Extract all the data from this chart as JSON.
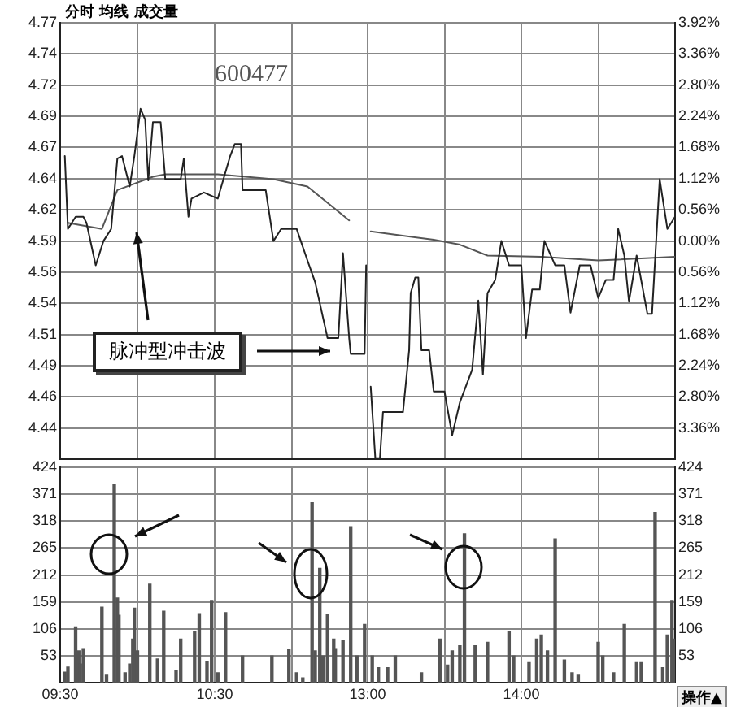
{
  "chart_data": [
    {
      "type": "line",
      "title": "600477",
      "annotations": [
        "分时 均线 成交量",
        "脉冲型冲击波"
      ],
      "xlim": [
        9.5,
        11.5
      ],
      "xticks": [
        9.5,
        10,
        10.5,
        11
      ],
      "ylim": [
        4.4101,
        4.7699
      ],
      "yticks": [
        {
          "value": 4.7699,
          "label": "4.77"
        },
        {
          "value": 4.7442,
          "label": "4.74"
        },
        {
          "value": 4.7185,
          "label": "4.72"
        },
        {
          "value": 4.6928,
          "label": "4.69"
        },
        {
          "value": 4.6671,
          "label": "4.67"
        },
        {
          "value": 4.6414,
          "label": "4.64"
        },
        {
          "value": 4.6157,
          "label": "4.62"
        },
        {
          "value": 4.59,
          "label": "4.59"
        },
        {
          "value": 4.5643,
          "label": "4.56"
        },
        {
          "value": 4.5386,
          "label": "4.54"
        },
        {
          "value": 4.5129,
          "label": "4.51"
        },
        {
          "value": 4.4872,
          "label": "4.49"
        },
        {
          "value": 4.4615,
          "label": "4.46"
        },
        {
          "value": 4.4358,
          "label": "4.44"
        }
      ],
      "grid": true,
      "tick_labels": "y",
      "series": [
        {
          "color": "#222222",
          "x": [
            9.53,
            9.55,
            9.6,
            9.65,
            9.67,
            9.73,
            9.78,
            9.83,
            9.87,
            9.9,
            9.95,
            9.98,
            10.02,
            10.05,
            10.07,
            10.1,
            10.15,
            10.18,
            10.28,
            10.3,
            10.33,
            10.35,
            10.43,
            10.52,
            10.6,
            10.63,
            10.67,
            10.68,
            10.83,
            10.88,
            10.93,
            11.03,
            11.1,
            11.15,
            11.23,
            11.3,
            11.33,
            11.37,
            11.38,
            11.47,
            11.48
          ],
          "values": [
            4.66,
            4.6,
            4.61,
            4.61,
            4.605,
            4.57,
            4.59,
            4.6,
            4.658,
            4.66,
            4.635,
            4.66,
            4.699,
            4.69,
            4.64,
            4.688,
            4.688,
            4.641,
            4.641,
            4.658,
            4.61,
            4.625,
            4.63,
            4.625,
            4.66,
            4.67,
            4.67,
            4.632,
            4.632,
            4.59,
            4.6,
            4.6,
            4.574,
            4.556,
            4.51,
            4.51,
            4.58,
            4.51,
            4.497,
            4.497,
            4.57
          ]
        },
        {
          "color": "#555555",
          "x": [
            9.55,
            9.77,
            9.87,
            10.1,
            10.18,
            10.52,
            10.88,
            11.1,
            11.37
          ],
          "values": [
            4.605,
            4.6,
            4.632,
            4.643,
            4.645,
            4.645,
            4.641,
            4.635,
            4.607
          ]
        }
      ]
    },
    {
      "type": "line",
      "xlim": [
        13,
        15
      ],
      "xticks": [
        13,
        13.5,
        14,
        14.5,
        15
      ],
      "ylim": [
        4.4101,
        4.7699
      ],
      "y2lim": [
        -3.92,
        3.92
      ],
      "y2ticks": [
        {
          "value": 3.92,
          "label": "3.92%"
        },
        {
          "value": 3.36,
          "label": "3.36%"
        },
        {
          "value": 2.8,
          "label": "2.80%"
        },
        {
          "value": 2.24,
          "label": "2.24%"
        },
        {
          "value": 1.68,
          "label": "1.68%"
        },
        {
          "value": 1.12,
          "label": "1.12%"
        },
        {
          "value": 0.56,
          "label": "0.56%"
        },
        {
          "value": 0,
          "label": "0.00%"
        },
        {
          "value": -0.56,
          "label": "0.56%"
        },
        {
          "value": -1.12,
          "label": "1.12%"
        },
        {
          "value": -1.68,
          "label": "1.68%"
        },
        {
          "value": -2.24,
          "label": "2.24%"
        },
        {
          "value": -2.8,
          "label": "2.80%"
        },
        {
          "value": -3.36,
          "label": "3.36%"
        }
      ],
      "grid": true,
      "tick_labels": "y",
      "series": [
        {
          "color": "#222222",
          "x": [
            13.02,
            13.05,
            13.08,
            13.1,
            13.23,
            13.27,
            13.28,
            13.31,
            13.33,
            13.35,
            13.4,
            13.43,
            13.5,
            13.55,
            13.6,
            13.68,
            13.72,
            13.75,
            13.78,
            13.83,
            13.87,
            13.92,
            14,
            14.03,
            14.07,
            14.12,
            14.15,
            14.22,
            14.28,
            14.32,
            14.38,
            14.45,
            14.5,
            14.55,
            14.6,
            14.63,
            14.67,
            14.7,
            14.75,
            14.82,
            14.85,
            14.9,
            14.95,
            15
          ],
          "values": [
            4.47,
            4.411,
            4.411,
            4.449,
            4.449,
            4.5,
            4.547,
            4.56,
            4.56,
            4.5,
            4.5,
            4.466,
            4.466,
            4.43,
            4.457,
            4.484,
            4.541,
            4.48,
            4.547,
            4.558,
            4.59,
            4.57,
            4.57,
            4.51,
            4.55,
            4.55,
            4.59,
            4.57,
            4.57,
            4.531,
            4.57,
            4.57,
            4.543,
            4.558,
            4.558,
            4.6,
            4.578,
            4.54,
            4.578,
            4.53,
            4.53,
            4.641,
            4.6,
            4.61
          ]
        },
        {
          "color": "#555555",
          "x": [
            13.02,
            13.43,
            13.6,
            13.78,
            14.13,
            14.5,
            15
          ],
          "values": [
            4.598,
            4.591,
            4.587,
            4.578,
            4.577,
            4.574,
            4.577
          ]
        }
      ]
    },
    {
      "type": "bar",
      "xlim": [
        9.5,
        11.5
      ],
      "xticks": [
        {
          "value": 9.5,
          "label": "09:30"
        },
        {
          "value": 10,
          "label": null
        },
        {
          "value": 10.5,
          "label": "10:30"
        },
        {
          "value": 11,
          "label": null
        }
      ],
      "ylim": [
        0,
        424
      ],
      "yticks": [
        53,
        106,
        159,
        212,
        265,
        318,
        371,
        424
      ],
      "grid": true,
      "series": [
        {
          "color": "#555555",
          "x": [
            9.53,
            9.55,
            9.6,
            9.62,
            9.63,
            9.65,
            9.77,
            9.8,
            9.85,
            9.87,
            9.88,
            9.92,
            9.95,
            9.97,
            9.98,
            10,
            10.08,
            10.13,
            10.17,
            10.25,
            10.28,
            10.37,
            10.4,
            10.45,
            10.48,
            10.52,
            10.57,
            10.68,
            10.87,
            10.98,
            11.03,
            11.07,
            11.13,
            11.15,
            11.18,
            11.2,
            11.23,
            11.27,
            11.28,
            11.33,
            11.38,
            11.42,
            11.47
          ],
          "values": [
            21,
            31,
            110,
            63,
            37,
            66,
            149,
            15,
            390,
            167,
            133,
            20,
            37,
            86,
            147,
            63,
            194,
            47,
            141,
            25,
            86,
            100,
            136,
            41,
            162,
            20,
            138,
            53,
            53,
            65,
            20,
            10,
            354,
            63,
            225,
            53,
            134,
            86,
            66,
            84,
            307,
            53,
            115
          ]
        }
      ]
    },
    {
      "type": "bar",
      "annotations": [
        "操作▲"
      ],
      "xlim": [
        13,
        15
      ],
      "xticks": [
        {
          "value": 13,
          "label": "13:00"
        },
        {
          "value": 13.5,
          "label": null
        },
        {
          "value": 14,
          "label": "14:00"
        },
        {
          "value": 14.5,
          "label": null
        },
        {
          "value": 15,
          "label": null
        }
      ],
      "y2lim": [
        0,
        424
      ],
      "y2ticks": [
        53,
        106,
        159,
        212,
        265,
        318,
        371,
        424
      ],
      "grid": true,
      "series": [
        {
          "axis": "y2",
          "color": "#555555",
          "x": [
            13.03,
            13.07,
            13.13,
            13.18,
            13.35,
            13.47,
            13.52,
            13.55,
            13.6,
            13.63,
            13.7,
            13.78,
            13.92,
            13.95,
            14.05,
            14.1,
            14.13,
            14.17,
            14.22,
            14.28,
            14.33,
            14.37,
            14.5,
            14.53,
            14.6,
            14.67,
            14.75,
            14.78,
            14.87,
            14.92,
            14.95,
            14.98,
            15
          ],
          "values": [
            53,
            30,
            30,
            53,
            20,
            86,
            35,
            63,
            73,
            293,
            73,
            80,
            100,
            53,
            40,
            86,
            94,
            63,
            283,
            45,
            20,
            15,
            80,
            53,
            20,
            115,
            40,
            40,
            335,
            30,
            94,
            162,
            86
          ]
        }
      ]
    }
  ]
}
